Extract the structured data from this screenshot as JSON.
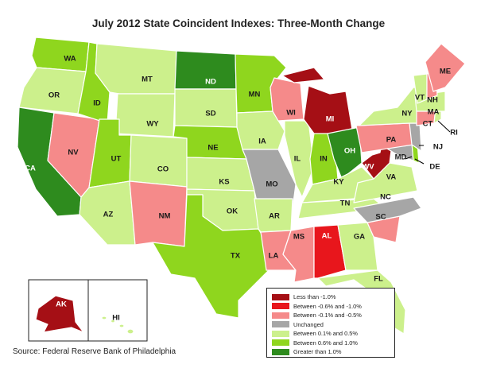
{
  "title": "July 2012 State Coincident Indexes: Three-Month Change",
  "source": "Source: Federal Reserve Bank of Philadelphia",
  "colors": {
    "lt_neg1": "#a50f15",
    "neg06_1": "#e8161c",
    "neg01_05": "#f58a8a",
    "unchanged": "#a6a6a6",
    "pos01_05": "#ccf08c",
    "pos06_1": "#8fd61e",
    "gt_pos1": "#2e8b1e"
  },
  "legend": [
    {
      "cat": "lt_neg1",
      "label": "Less than -1.0%"
    },
    {
      "cat": "neg06_1",
      "label": "Between -0.6% and -1.0%"
    },
    {
      "cat": "neg01_05",
      "label": "Between -0.1% and -0.5%"
    },
    {
      "cat": "unchanged",
      "label": "Unchanged"
    },
    {
      "cat": "pos01_05",
      "label": "Between 0.1% and 0.5%"
    },
    {
      "cat": "pos06_1",
      "label": "Between 0.6% and 1.0%"
    },
    {
      "cat": "gt_pos1",
      "label": "Greater than 1.0%"
    }
  ],
  "states": [
    {
      "code": "WA",
      "cat": "pos06_1"
    },
    {
      "code": "OR",
      "cat": "pos01_05"
    },
    {
      "code": "CA",
      "cat": "gt_pos1"
    },
    {
      "code": "NV",
      "cat": "neg01_05"
    },
    {
      "code": "ID",
      "cat": "pos06_1"
    },
    {
      "code": "MT",
      "cat": "pos01_05"
    },
    {
      "code": "WY",
      "cat": "pos01_05"
    },
    {
      "code": "UT",
      "cat": "pos06_1"
    },
    {
      "code": "AZ",
      "cat": "pos01_05"
    },
    {
      "code": "CO",
      "cat": "pos01_05"
    },
    {
      "code": "NM",
      "cat": "neg01_05"
    },
    {
      "code": "ND",
      "cat": "gt_pos1"
    },
    {
      "code": "SD",
      "cat": "pos01_05"
    },
    {
      "code": "NE",
      "cat": "pos06_1"
    },
    {
      "code": "KS",
      "cat": "pos01_05"
    },
    {
      "code": "OK",
      "cat": "pos01_05"
    },
    {
      "code": "TX",
      "cat": "pos06_1"
    },
    {
      "code": "MN",
      "cat": "pos06_1"
    },
    {
      "code": "IA",
      "cat": "pos01_05"
    },
    {
      "code": "MO",
      "cat": "unchanged"
    },
    {
      "code": "AR",
      "cat": "pos01_05"
    },
    {
      "code": "LA",
      "cat": "neg01_05"
    },
    {
      "code": "WI",
      "cat": "neg01_05"
    },
    {
      "code": "IL",
      "cat": "pos01_05"
    },
    {
      "code": "MI",
      "cat": "lt_neg1"
    },
    {
      "code": "IN",
      "cat": "pos06_1"
    },
    {
      "code": "OH",
      "cat": "gt_pos1"
    },
    {
      "code": "KY",
      "cat": "pos01_05"
    },
    {
      "code": "TN",
      "cat": "pos01_05"
    },
    {
      "code": "MS",
      "cat": "neg01_05"
    },
    {
      "code": "AL",
      "cat": "neg06_1"
    },
    {
      "code": "GA",
      "cat": "pos01_05"
    },
    {
      "code": "FL",
      "cat": "pos01_05"
    },
    {
      "code": "SC",
      "cat": "neg01_05"
    },
    {
      "code": "NC",
      "cat": "unchanged"
    },
    {
      "code": "VA",
      "cat": "pos01_05"
    },
    {
      "code": "WV",
      "cat": "lt_neg1"
    },
    {
      "code": "MD",
      "cat": "unchanged"
    },
    {
      "code": "DE",
      "cat": "pos06_1"
    },
    {
      "code": "PA",
      "cat": "neg01_05"
    },
    {
      "code": "NJ",
      "cat": "unchanged"
    },
    {
      "code": "NY",
      "cat": "pos01_05"
    },
    {
      "code": "CT",
      "cat": "neg01_05"
    },
    {
      "code": "RI",
      "cat": "pos01_05"
    },
    {
      "code": "MA",
      "cat": "pos01_05"
    },
    {
      "code": "VT",
      "cat": "pos01_05"
    },
    {
      "code": "NH",
      "cat": "neg01_05"
    },
    {
      "code": "ME",
      "cat": "neg01_05"
    },
    {
      "code": "AK",
      "cat": "lt_neg1"
    },
    {
      "code": "HI",
      "cat": "pos01_05"
    }
  ]
}
